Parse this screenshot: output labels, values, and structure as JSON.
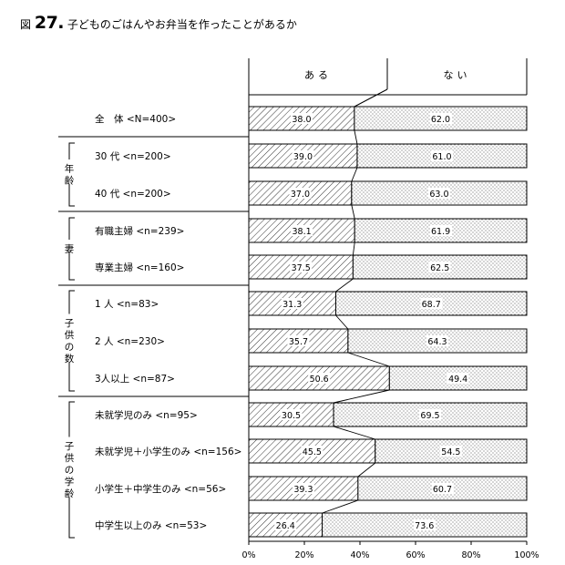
{
  "title": {
    "prefix": "図",
    "number": "27.",
    "text": "子どものごはんやお弁当を作ったことがあるか"
  },
  "chart_data": {
    "type": "bar",
    "stacked": true,
    "orientation": "horizontal",
    "legend": [
      "ある",
      "ない"
    ],
    "categories": [
      "全　体 <N=400>",
      "30 代 <n=200>",
      "40 代 <n=200>",
      "有職主婦 <n=239>",
      "専業主婦 <n=160>",
      "1 人 <n=83>",
      "2 人 <n=230>",
      "3人以上 <n=87>",
      "未就学児のみ <n=95>",
      "未就学児＋小学生のみ <n=156>",
      "小学生＋中学生のみ <n=56>",
      "中学生以上のみ <n=53>"
    ],
    "groups": [
      {
        "label": "",
        "start": 0,
        "end": 0
      },
      {
        "label": "年齢",
        "start": 1,
        "end": 2
      },
      {
        "label": "妻",
        "start": 3,
        "end": 4
      },
      {
        "label": "子供の数",
        "start": 5,
        "end": 7
      },
      {
        "label": "子供の学齢",
        "start": 8,
        "end": 11
      }
    ],
    "series": [
      {
        "name": "ある",
        "values": [
          38.0,
          39.0,
          37.0,
          38.1,
          37.5,
          31.3,
          35.7,
          50.6,
          30.5,
          45.5,
          39.3,
          26.4
        ]
      },
      {
        "name": "ない",
        "values": [
          62.0,
          61.0,
          63.0,
          61.9,
          62.5,
          68.7,
          64.3,
          49.4,
          69.5,
          54.5,
          60.7,
          73.6
        ]
      }
    ],
    "value_labels": {
      "ある": [
        "38.0",
        "39.0",
        "37.0",
        "38.1",
        "37.5",
        "31.3",
        "35.7",
        "50.6",
        "30.5",
        "45.5",
        "39.3",
        "26.4"
      ],
      "ない": [
        "62.0",
        "61.0",
        "63.0",
        "61.9",
        "62.5",
        "68.7",
        "64.3",
        "49.4",
        "69.5",
        "54.5",
        "60.7",
        "73.6"
      ]
    },
    "xlim": [
      0,
      100
    ],
    "xticks": [
      "0%",
      "20%",
      "40%",
      "60%",
      "80%",
      "100%"
    ],
    "xlabel": "",
    "ylabel": ""
  }
}
